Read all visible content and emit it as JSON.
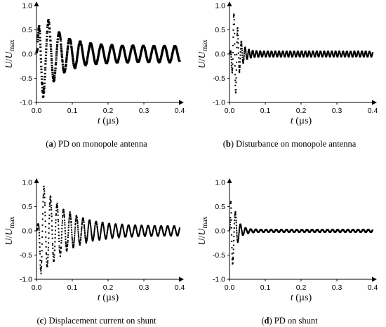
{
  "figure": {
    "panels": [
      {
        "tag": "a",
        "caption": "PD on monopole antenna"
      },
      {
        "tag": "b",
        "caption": "Disturbance on monopole antenna"
      },
      {
        "tag": "c",
        "caption": "Displacement current on shunt"
      },
      {
        "tag": "d",
        "caption": "PD on shunt"
      }
    ]
  },
  "chart_data": [
    {
      "type": "scatter",
      "panel": "a",
      "ylabel_main": "U",
      "ylabel_sep": "/",
      "ylabel_var": "U",
      "ylabel_sub": "max",
      "xlabel_var": "t",
      "xlabel_unit": "(µs)",
      "xlim": [
        0,
        0.4
      ],
      "ylim": [
        -1.0,
        1.0
      ],
      "xticks": [
        "0.0",
        "0.1",
        "0.2",
        "0.3",
        "0.4"
      ],
      "yticks": [
        "1.0",
        "0.5",
        "0.0",
        "-0.5",
        "-1.0"
      ],
      "grid": false,
      "envelope": {
        "peak_t": 0.012,
        "rise": 0.008,
        "decay": 0.05,
        "floor": 0.18,
        "freq": 34,
        "points": 1000
      },
      "markers": "dashes"
    },
    {
      "type": "scatter",
      "panel": "b",
      "ylabel_main": "U",
      "ylabel_sep": "/",
      "ylabel_var": "U",
      "ylabel_sub": "max",
      "xlabel_var": "t",
      "xlabel_unit": "(µs)",
      "xlim": [
        0,
        0.4
      ],
      "ylim": [
        -1.0,
        1.0
      ],
      "xticks": [
        "0.0",
        "0.1",
        "0.2",
        "0.3",
        "0.4"
      ],
      "yticks": [
        "1.0",
        "0.5",
        "0.0",
        "-0.5",
        "-1.0"
      ],
      "grid": false,
      "envelope": {
        "peak_t": 0.015,
        "rise": 0.008,
        "decay": 0.012,
        "floor": 0.06,
        "freq": 95,
        "points": 1000
      },
      "markers": "dots"
    },
    {
      "type": "scatter",
      "panel": "c",
      "ylabel_main": "U",
      "ylabel_sep": "/",
      "ylabel_var": "U",
      "ylabel_sub": "max",
      "xlabel_var": "t",
      "xlabel_unit": "(µs)",
      "xlim": [
        0,
        0.4
      ],
      "ylim": [
        -1.0,
        1.0
      ],
      "xticks": [
        "0.0",
        "0.1",
        "0.2",
        "0.3",
        "0.4"
      ],
      "yticks": [
        "1.0",
        "0.5",
        "0.0",
        "-0.5",
        "-1.0"
      ],
      "grid": false,
      "envelope": {
        "peak_t": 0.015,
        "rise": 0.008,
        "decay": 0.07,
        "floor": 0.1,
        "freq": 55,
        "points": 1000
      },
      "markers": "dots"
    },
    {
      "type": "scatter",
      "panel": "d",
      "ylabel_main": "U",
      "ylabel_sep": "/",
      "ylabel_var": "U",
      "ylabel_sub": "max",
      "xlabel_var": "t",
      "xlabel_unit": "(µs)",
      "xlim": [
        0,
        0.4
      ],
      "ylim": [
        -1.0,
        1.0
      ],
      "xticks": [
        "0.0",
        "0.1",
        "0.2",
        "0.3",
        "0.4"
      ],
      "yticks": [
        "1.0",
        "0.5",
        "0.0",
        "-0.5",
        "-1.0"
      ],
      "grid": false,
      "envelope": {
        "peak_t": 0.005,
        "rise": 0.003,
        "decay": 0.012,
        "floor": 0.03,
        "freq": 70,
        "points": 1000
      },
      "markers": "dots"
    }
  ]
}
